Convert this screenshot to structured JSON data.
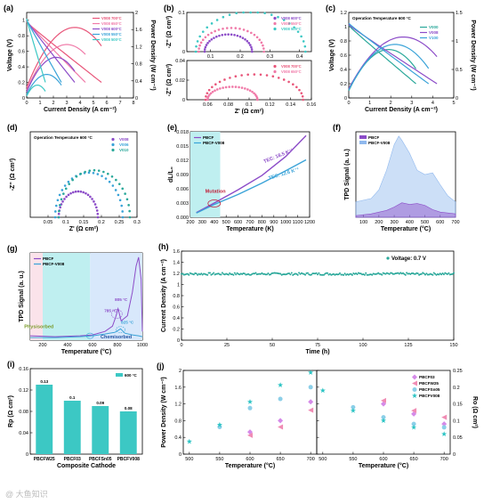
{
  "figure": {
    "watermark": "@ 大鱼知识",
    "colors": {
      "c700": "#e8567a",
      "c650": "#f07aa8",
      "c600": "#8c4cc8",
      "c550": "#3aa3d8",
      "c500": "#3cc8c4",
      "accent_teal": "#2aa89a",
      "light_cyan": "#bfeff0",
      "light_purple": "#d9c8f0",
      "light_pink": "#fbe3ea",
      "light_blue": "#d8e8fb"
    }
  },
  "chart_data": [
    {
      "id": "a",
      "panel_label": "(a)",
      "type": "line",
      "xlabel": "Current Density (A cm⁻²)",
      "ylabel": "Voltage (V)",
      "y2label": "Power Density (W cm⁻²)",
      "xlim": [
        0,
        8
      ],
      "ylim": [
        0,
        1.1
      ],
      "y2lim": [
        0,
        2.0
      ],
      "xticks": [
        0,
        1,
        2,
        3,
        4,
        5,
        6,
        7,
        8
      ],
      "yticks": [
        0.0,
        0.2,
        0.4,
        0.6,
        0.8,
        1.0
      ],
      "y2ticks": [
        0.0,
        0.4,
        0.8,
        1.2,
        1.6,
        2.0
      ],
      "legend": "top-right",
      "series": [
        {
          "name": "V008 700°C",
          "color": "#e8567a",
          "ocv": 0.98,
          "imax": 5.6,
          "pmax_i": 3.6,
          "pmax": 1.65
        },
        {
          "name": "V008 650°C",
          "color": "#f07aa8",
          "ocv": 0.99,
          "imax": 4.4,
          "pmax_i": 3.0,
          "pmax": 1.25
        },
        {
          "name": "V008 600°C",
          "color": "#8c4cc8",
          "ocv": 1.0,
          "imax": 3.6,
          "pmax_i": 2.2,
          "pmax": 0.95
        },
        {
          "name": "V008 550°C",
          "color": "#3aa3d8",
          "ocv": 1.01,
          "imax": 2.6,
          "pmax_i": 1.5,
          "pmax": 0.55
        },
        {
          "name": "V008 500°C",
          "color": "#3cc8c4",
          "ocv": 1.02,
          "imax": 1.4,
          "pmax_i": 0.8,
          "pmax": 0.3
        }
      ]
    },
    {
      "id": "b1",
      "panel_label": "(b)",
      "type": "scatter",
      "ylabel": "-Z'' (Ω cm²)",
      "xlim": [
        0.02,
        0.44
      ],
      "ylim": [
        0,
        0.1
      ],
      "xticks": [
        0.1,
        0.2,
        0.3,
        0.4
      ],
      "yticks": [
        0.0,
        0.1
      ],
      "legend": "top-right",
      "series": [
        {
          "name": "V008 600°C",
          "color": "#8c4cc8",
          "x0": 0.08,
          "x1": 0.24
        },
        {
          "name": "V008 550°C",
          "color": "#f07aa8",
          "x0": 0.06,
          "x1": 0.28
        },
        {
          "name": "V008 500°C",
          "color": "#3cc8c4",
          "x0": 0.05,
          "x1": 0.42
        }
      ]
    },
    {
      "id": "b2",
      "type": "scatter",
      "xlabel": "Z' (Ω cm²)",
      "ylabel": "-Z'' (Ω cm²)",
      "xlim": [
        0.04,
        0.16
      ],
      "ylim": [
        0,
        0.04
      ],
      "xticks": [
        0.06,
        0.08,
        0.1,
        0.12,
        0.14,
        0.16
      ],
      "yticks": [
        0.0,
        0.02,
        0.04
      ],
      "legend": "top-right",
      "series": [
        {
          "name": "V008 700°C",
          "color": "#e8567a",
          "x0": 0.058,
          "x1": 0.152
        },
        {
          "name": "V008 650°C",
          "color": "#f07aa8",
          "x0": 0.06,
          "x1": 0.108
        }
      ]
    },
    {
      "id": "c",
      "panel_label": "(c)",
      "type": "line",
      "xlabel": "Current Density (A cm⁻²)",
      "ylabel": "Voltage (V)",
      "y2label": "Power Density (W cm⁻²)",
      "annotation": "Operation Temperature 600 °C",
      "xlim": [
        0,
        5
      ],
      "ylim": [
        0,
        1.2
      ],
      "y2lim": [
        0,
        1.5
      ],
      "xticks": [
        0,
        1,
        2,
        3,
        4,
        5
      ],
      "yticks": [
        0.0,
        0.2,
        0.4,
        0.6,
        0.8,
        1.0,
        1.2
      ],
      "y2ticks": [
        0.0,
        0.5,
        1.0,
        1.5
      ],
      "legend": "top-right",
      "series": [
        {
          "name": "V000",
          "color": "#2aa89a",
          "ocv": 1.02,
          "imax": 3.2,
          "pmax_i": 1.9,
          "pmax": 0.85
        },
        {
          "name": "V008",
          "color": "#8c4cc8",
          "ocv": 1.03,
          "imax": 4.2,
          "pmax_i": 2.6,
          "pmax": 1.07
        },
        {
          "name": "V100",
          "color": "#3aa3d8",
          "ocv": 1.05,
          "imax": 3.8,
          "pmax_i": 2.2,
          "pmax": 0.94
        }
      ]
    },
    {
      "id": "d",
      "panel_label": "(d)",
      "type": "scatter",
      "xlabel": "Z' (Ω cm²)",
      "ylabel": "-Z'' (Ω cm²)",
      "annotation": "Operation Temperature 600 °C",
      "xlim": [
        0.0,
        0.3
      ],
      "ylim": [
        0,
        0.1
      ],
      "xticks": [
        0.05,
        0.1,
        0.15,
        0.2,
        0.25,
        0.3
      ],
      "yticks": [],
      "legend": "top-right",
      "series": [
        {
          "name": "V008",
          "color": "#8c4cc8",
          "x0": 0.08,
          "x1": 0.19
        },
        {
          "name": "V006",
          "color": "#3aa3d8",
          "x0": 0.07,
          "x1": 0.26
        },
        {
          "name": "V010",
          "color": "#2aa89a",
          "x0": 0.08,
          "x1": 0.28
        }
      ]
    },
    {
      "id": "e",
      "panel_label": "(e)",
      "type": "line",
      "xlabel": "Temperature (K)",
      "ylabel": "dL/L₀",
      "xlim": [
        200,
        1200
      ],
      "ylim": [
        0,
        0.018
      ],
      "xticks": [
        200,
        300,
        400,
        500,
        600,
        700,
        800,
        900,
        1000,
        1100,
        1200
      ],
      "yticks": [
        0.0,
        0.003,
        0.006,
        0.009,
        0.012,
        0.015,
        0.018
      ],
      "shade": [
        200,
        450
      ],
      "legend": "top-left",
      "annotations": [
        "TEC: 18.5 K⁻¹",
        "TEC: 12.6 K⁻¹",
        "Mutation"
      ],
      "series": [
        {
          "name": "PBCF",
          "color": "#8c4cc8",
          "x": [
            250,
            400,
            600,
            800,
            1000,
            1170
          ],
          "y": [
            0.001,
            0.003,
            0.0058,
            0.0088,
            0.0128,
            0.0172
          ]
        },
        {
          "name": "PBCF-V008",
          "color": "#3aa3d8",
          "x": [
            250,
            400,
            600,
            800,
            1000,
            1170
          ],
          "y": [
            0.0009,
            0.0027,
            0.0048,
            0.0072,
            0.0098,
            0.0121
          ]
        }
      ]
    },
    {
      "id": "f",
      "panel_label": "(f)",
      "type": "area",
      "xlabel": "Temperature (°C)",
      "ylabel": "TPD Signal (a. u.)",
      "xlim": [
        50,
        700
      ],
      "xticks": [
        100,
        200,
        300,
        400,
        500,
        600,
        700
      ],
      "legend": "top-left",
      "series": [
        {
          "name": "PBCF",
          "color": "#8c4cc8",
          "x": [
            50,
            150,
            250,
            300,
            350,
            400,
            450,
            500,
            550,
            600,
            650,
            700
          ],
          "y": [
            0.02,
            0.04,
            0.08,
            0.12,
            0.17,
            0.15,
            0.16,
            0.14,
            0.09,
            0.06,
            0.05,
            0.04
          ]
        },
        {
          "name": "PBCF-V008",
          "color": "#8fb8ee",
          "x": [
            50,
            150,
            200,
            250,
            300,
            330,
            350,
            400,
            450,
            500,
            550,
            600,
            650,
            700
          ],
          "y": [
            0.18,
            0.22,
            0.32,
            0.55,
            0.85,
            0.95,
            0.9,
            0.75,
            0.55,
            0.5,
            0.52,
            0.38,
            0.25,
            0.18
          ]
        }
      ]
    },
    {
      "id": "g",
      "panel_label": "(g)",
      "type": "line",
      "xlabel": "Temperature (°C)",
      "ylabel": "TPD Signal (a. u.)",
      "xlim": [
        100,
        1000
      ],
      "xticks": [
        200,
        400,
        600,
        800,
        1000
      ],
      "legend": "top-left",
      "regions": [
        {
          "label": "Physisorbed",
          "range": [
            100,
            200
          ],
          "color": "#fbe3ea"
        },
        {
          "label": "",
          "range": [
            200,
            580
          ],
          "color": "#bfeff0"
        },
        {
          "label": "Chemisorbed",
          "range": [
            580,
            1000
          ],
          "color": "#d8e8fb"
        }
      ],
      "annotations": [
        "785 °C",
        "805 °C",
        "825 °C"
      ],
      "series": [
        {
          "name": "PBCF",
          "color": "#8c4cc8",
          "x": [
            100,
            300,
            500,
            600,
            700,
            760,
            785,
            805,
            830,
            880,
            920,
            950,
            970,
            990,
            1000
          ],
          "y": [
            0.05,
            0.04,
            0.05,
            0.06,
            0.1,
            0.16,
            0.26,
            0.36,
            0.22,
            0.28,
            0.55,
            0.85,
            0.95,
            0.7,
            0.1
          ]
        },
        {
          "name": "PBCF-V008",
          "color": "#3aa3d8",
          "x": [
            100,
            300,
            500,
            600,
            700,
            780,
            825,
            860,
            920,
            970,
            1000
          ],
          "y": [
            0.03,
            0.03,
            0.04,
            0.05,
            0.07,
            0.09,
            0.13,
            0.08,
            0.06,
            0.05,
            0.04
          ]
        }
      ]
    },
    {
      "id": "h",
      "panel_label": "(h)",
      "type": "scatter",
      "xlabel": "Time (h)",
      "ylabel": "Current Density (A cm⁻²)",
      "xlim": [
        0,
        150
      ],
      "ylim": [
        0,
        1.6
      ],
      "xticks": [
        0,
        25,
        50,
        75,
        100,
        125,
        150
      ],
      "yticks": [
        0.0,
        0.2,
        0.4,
        0.6,
        0.8,
        1.0,
        1.2,
        1.4,
        1.6
      ],
      "legend": "top-right",
      "series": [
        {
          "name": "Voltage: 0.7 V",
          "color": "#2aa89a",
          "mean": 1.19,
          "noise": 0.02
        }
      ]
    },
    {
      "id": "i",
      "panel_label": "(i)",
      "type": "bar",
      "xlabel": "Composite Cathode",
      "ylabel": "Rp (Ω cm²)",
      "ylim": [
        0,
        0.16
      ],
      "yticks": [
        0.0,
        0.04,
        0.08,
        0.12,
        0.16
      ],
      "legend": "top-right",
      "categories": [
        "PBCFW25",
        "PBCF03",
        "PBCFSn05",
        "PBCFV008"
      ],
      "series": [
        {
          "name": "600 °C",
          "color": "#3cc8c4",
          "values": [
            0.13,
            0.1,
            0.09,
            0.08
          ],
          "labels": [
            "0.13",
            "0.1",
            "0.09",
            "0.08"
          ]
        }
      ]
    },
    {
      "id": "j1",
      "panel_label": "(j)",
      "type": "scatter",
      "xlabel": "Temperature (°C)",
      "ylabel": "Power Density (W cm⁻²)",
      "xlim": [
        490,
        710
      ],
      "ylim": [
        0,
        2.0
      ],
      "xticks": [
        500,
        550,
        600,
        650,
        700
      ],
      "yticks": [
        0.0,
        0.4,
        0.8,
        1.2,
        1.6,
        2.0
      ],
      "legend": "none",
      "categories": [
        500,
        550,
        600,
        650,
        700
      ],
      "series": [
        {
          "name": "PBCF03",
          "color": "#d58ae8",
          "marker": "diamond",
          "values": [
            null,
            null,
            0.53,
            0.8,
            1.25
          ]
        },
        {
          "name": "PBCFW25",
          "color": "#f08cb4",
          "marker": "triangle",
          "values": [
            null,
            null,
            0.45,
            0.65,
            1.05
          ]
        },
        {
          "name": "PBCFSn05",
          "color": "#8ccfe8",
          "marker": "circle",
          "values": [
            null,
            0.65,
            1.1,
            1.32,
            1.6
          ]
        },
        {
          "name": "PBCFV008",
          "color": "#2cc4c4",
          "marker": "star",
          "values": [
            0.3,
            0.7,
            1.25,
            1.65,
            1.95
          ]
        }
      ]
    },
    {
      "id": "j2",
      "type": "scatter",
      "xlabel": "Temperature (°C)",
      "ylabel": "Ro (Ω cm²)",
      "xlim": [
        490,
        710
      ],
      "ylim": [
        0,
        0.25
      ],
      "xticks": [
        500,
        550,
        600,
        650,
        700
      ],
      "yticks": [
        0.0,
        0.05,
        0.1,
        0.15,
        0.2,
        0.25
      ],
      "legend": "top-right",
      "categories": [
        500,
        550,
        600,
        650,
        700
      ],
      "series": [
        {
          "name": "PBCF03",
          "color": "#d58ae8",
          "marker": "diamond",
          "values": [
            null,
            null,
            0.15,
            0.12,
            0.09
          ]
        },
        {
          "name": "PBCFW25",
          "color": "#f08cb4",
          "marker": "triangle",
          "values": [
            null,
            null,
            0.16,
            0.13,
            0.11
          ]
        },
        {
          "name": "PBCFSn05",
          "color": "#8ccfe8",
          "marker": "circle",
          "values": [
            null,
            0.14,
            0.11,
            0.09,
            0.08
          ]
        },
        {
          "name": "PBCFV008",
          "color": "#2cc4c4",
          "marker": "star",
          "values": [
            0.19,
            0.13,
            0.1,
            0.08,
            0.06
          ]
        }
      ]
    }
  ]
}
